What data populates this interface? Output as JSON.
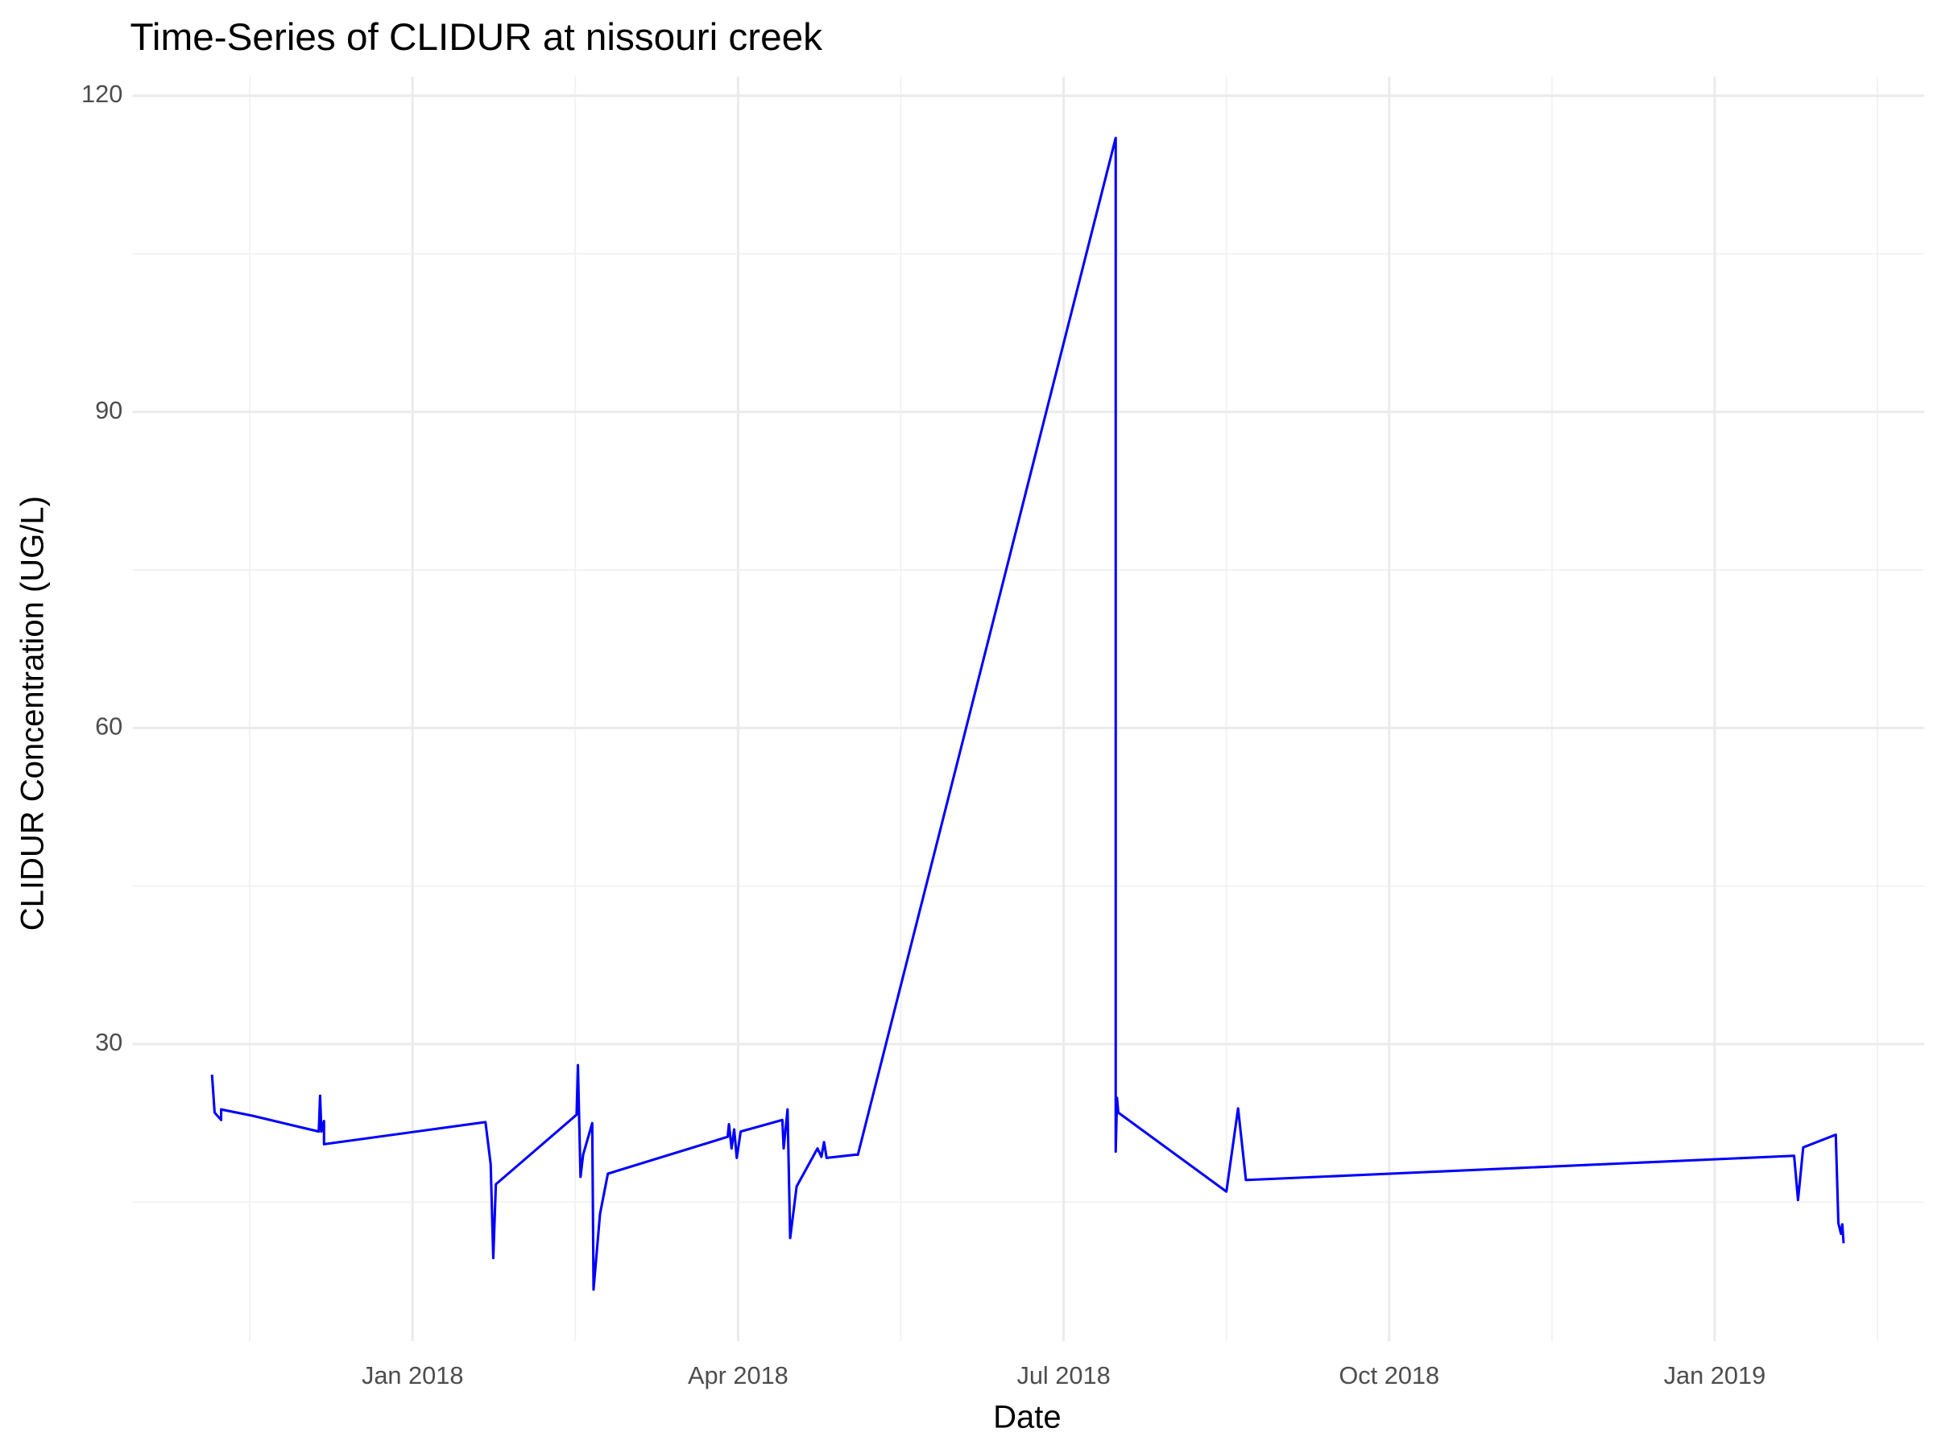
{
  "chart_data": {
    "type": "line",
    "title": "Time-Series of CLIDUR at nissouri creek",
    "x_label": "Date",
    "y_label": "CLIDUR Concentration (UG/L)",
    "x": [
      2017.846,
      2017.848,
      2017.853,
      2017.853,
      2017.877,
      2017.928,
      2017.929,
      2017.93,
      2017.932,
      2017.932,
      2018.056,
      2018.06,
      2018.062,
      2018.064,
      2018.126,
      2018.127,
      2018.129,
      2018.131,
      2018.138,
      2018.139,
      2018.144,
      2018.15,
      2018.242,
      2018.243,
      2018.245,
      2018.247,
      2018.249,
      2018.252,
      2018.284,
      2018.285,
      2018.288,
      2018.29,
      2018.295,
      2018.311,
      2018.314,
      2018.316,
      2018.318,
      2018.34,
      2018.342,
      2018.54,
      2018.54,
      2018.541,
      2018.542,
      2018.625,
      2018.634,
      2018.64,
      2019.061,
      2019.064,
      2019.068,
      2019.093,
      2019.095,
      2019.097,
      2019.098,
      2019.099
    ],
    "series": [
      {
        "name": "CLIDUR",
        "color": "#0000ff",
        "values": [
          27.1,
          23.5,
          22.8,
          23.8,
          23.2,
          21.7,
          25.1,
          21.7,
          22.7,
          20.5,
          22.6,
          18.6,
          9.7,
          16.7,
          23.3,
          28.0,
          17.4,
          19.5,
          22.5,
          6.7,
          13.9,
          17.7,
          21.2,
          22.4,
          20.1,
          21.9,
          19.2,
          21.7,
          22.8,
          20.1,
          23.8,
          11.6,
          16.5,
          20.1,
          19.3,
          20.7,
          19.2,
          19.5,
          19.5,
          116.0,
          19.8,
          24.9,
          23.5,
          16.0,
          23.9,
          17.1,
          19.4,
          15.2,
          20.2,
          21.4,
          13.0,
          12.0,
          12.9,
          11.1
        ]
      }
    ],
    "xlim": [
      2017.785,
      2019.161
    ],
    "xticks": [
      {
        "value": 2018.0,
        "label": "Jan 2018"
      },
      {
        "value": 2018.25,
        "label": "Apr 2018"
      },
      {
        "value": 2018.5,
        "label": "Jul 2018"
      },
      {
        "value": 2018.75,
        "label": "Oct 2018"
      },
      {
        "value": 2019.0,
        "label": "Jan 2019"
      }
    ],
    "ylim": [
      1.8,
      121.8
    ],
    "yticks": [
      30,
      60,
      90,
      120
    ],
    "grid": true
  }
}
